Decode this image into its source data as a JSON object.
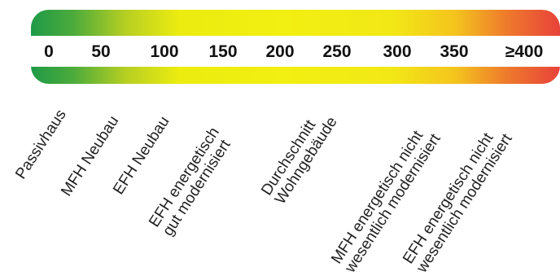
{
  "scale": {
    "ticks": [
      "0",
      "50",
      "100",
      "150",
      "200",
      "250",
      "300",
      "350",
      "≥400"
    ],
    "colors": {
      "low": "#1f9a47",
      "mid": "#f2ef12",
      "high": "#e8423a",
      "band": "#ffffff"
    }
  },
  "categories": [
    {
      "lines": [
        "Passivhaus"
      ]
    },
    {
      "lines": [
        "MFH Neubau"
      ]
    },
    {
      "lines": [
        "EFH Neubau"
      ]
    },
    {
      "lines": [
        "EFH energetisch",
        "gut modernisiert"
      ]
    },
    {
      "lines": [
        "Durchschnitt",
        "Wohngebäude"
      ]
    },
    {
      "lines": [
        "MFH energetisch nicht",
        "wesentlich modernisiert"
      ]
    },
    {
      "lines": [
        "EFH energetisch nicht",
        "wesentlich modernisiert"
      ]
    }
  ]
}
